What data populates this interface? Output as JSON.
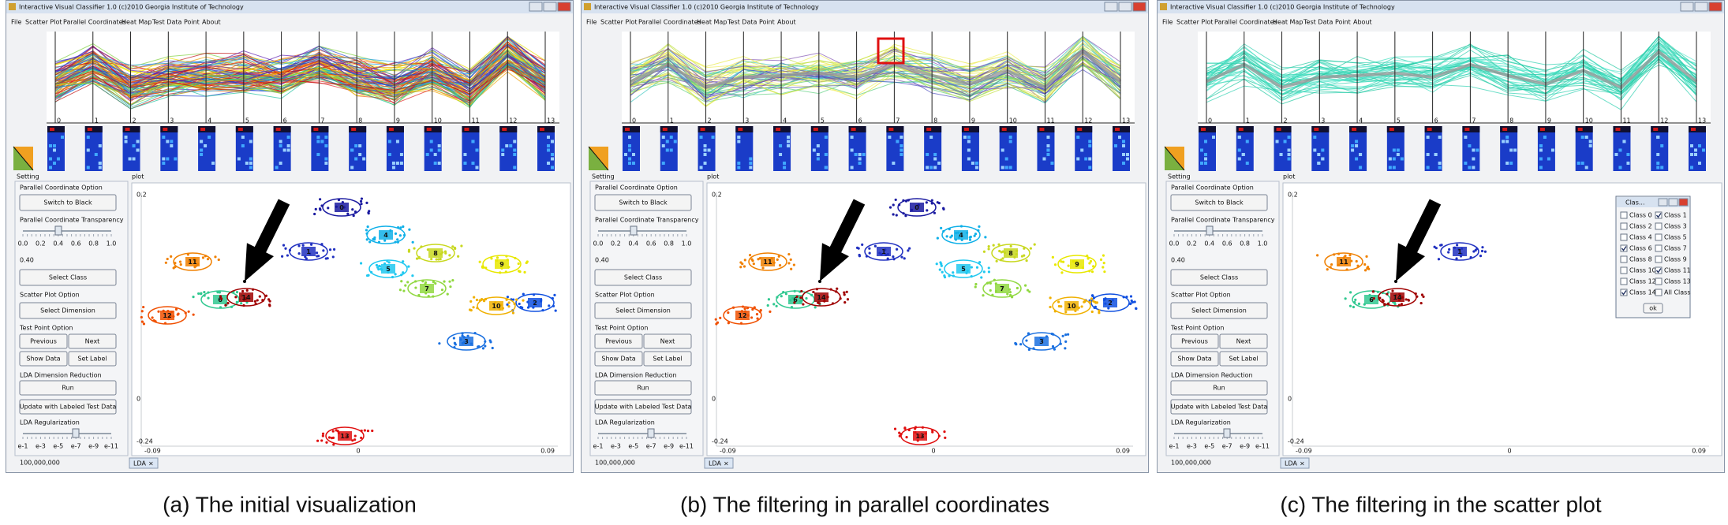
{
  "window": {
    "title": "Interactive Visual Classifier 1.0 (c)2010 Georgia Institute of Technology",
    "menu": [
      "File",
      "Scatter Plot",
      "Parallel Coordinates",
      "Heat Map",
      "Test Data Point",
      "About"
    ],
    "pc_axes": [
      "0",
      "1",
      "2",
      "3",
      "4",
      "5",
      "6",
      "7",
      "8",
      "9",
      "10",
      "11",
      "12",
      "13"
    ],
    "setting_label": "Setting",
    "plot_label": "plot",
    "controls": {
      "pc_option": "Parallel Coordinate Option",
      "switch_black": "Switch to Black",
      "pc_transparency": "Parallel Coordinate Transparency",
      "transparency_ticks": [
        "0.0",
        "0.2",
        "0.4",
        "0.6",
        "0.8",
        "1.0"
      ],
      "transparency_value": "0.40",
      "select_class": "Select Class",
      "scatter_option": "Scatter Plot Option",
      "select_dimension": "Select Dimension",
      "test_point_option": "Test Point Option",
      "previous": "Previous",
      "next": "Next",
      "show_data": "Show Data",
      "set_label": "Set Label",
      "lda_reduction": "LDA Dimension Reduction",
      "run": "Run",
      "update": "Update with Labeled Test Data",
      "lda_regularization": "LDA Regularization",
      "regularization_ticks": [
        "e-1",
        "e-3",
        "e-5",
        "e-7",
        "e-9",
        "e-11"
      ],
      "regularization_value": "100,000,000"
    },
    "scatter": {
      "y_labels": [
        "0.2",
        "0",
        "-0.24"
      ],
      "x_labels": [
        "-0.09",
        "0",
        "0.09"
      ],
      "tab": "LDA",
      "tab_close": "×"
    }
  },
  "panels": [
    {
      "caption": "(a) The initial visualization",
      "clusters": [
        "0",
        "1",
        "2",
        "3",
        "4",
        "5",
        "6",
        "7",
        "8",
        "9",
        "10",
        "11",
        "12",
        "13",
        "14"
      ]
    },
    {
      "caption": "(b) The filtering in parallel coordinates",
      "pc_highlight": true,
      "clusters": [
        "0",
        "1",
        "2",
        "3",
        "4",
        "5",
        "6",
        "7",
        "8",
        "9",
        "10",
        "11",
        "12",
        "13",
        "14"
      ]
    },
    {
      "caption": "(c) The filtering in the scatter plot",
      "clusters": [
        "1",
        "6",
        "11",
        "14"
      ],
      "dialog": {
        "title": "Clas...",
        "ok": "ok",
        "items": [
          {
            "label": "Class 0",
            "checked": false
          },
          {
            "label": "Class 1",
            "checked": true
          },
          {
            "label": "Class 2",
            "checked": false
          },
          {
            "label": "Class 3",
            "checked": false
          },
          {
            "label": "Class 4",
            "checked": false
          },
          {
            "label": "Class 5",
            "checked": false
          },
          {
            "label": "Class 6",
            "checked": true
          },
          {
            "label": "Class 7",
            "checked": false
          },
          {
            "label": "Class 8",
            "checked": false
          },
          {
            "label": "Class 9",
            "checked": false
          },
          {
            "label": "Class 10",
            "checked": false
          },
          {
            "label": "Class 11",
            "checked": true
          },
          {
            "label": "Class 12",
            "checked": false
          },
          {
            "label": "Class 13",
            "checked": false
          },
          {
            "label": "Class 14",
            "checked": true
          },
          {
            "label": "All Class",
            "checked": false
          }
        ]
      }
    }
  ]
}
